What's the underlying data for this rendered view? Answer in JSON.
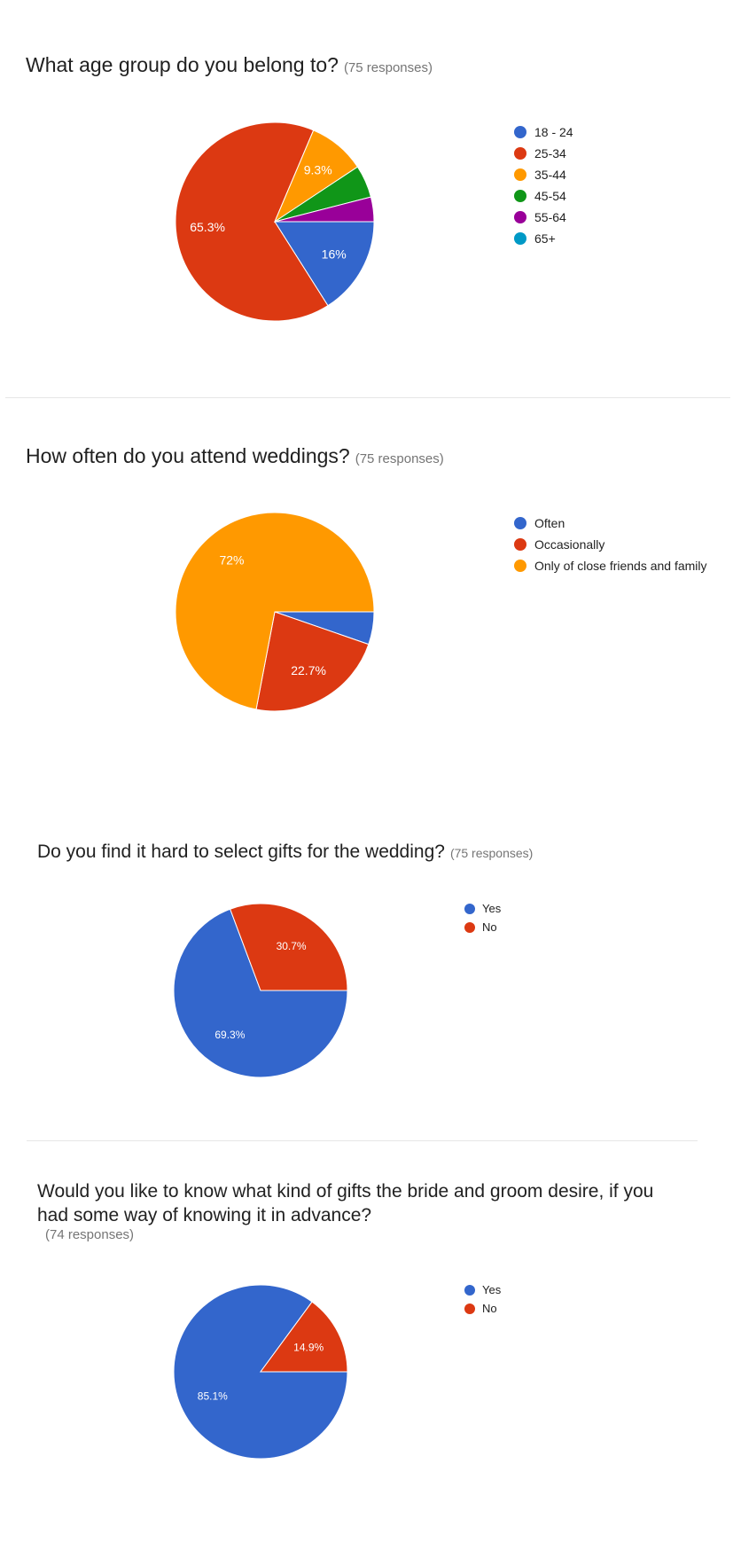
{
  "chart_data": [
    {
      "type": "pie",
      "title": "What age group do you belong to?",
      "responses": "(75 responses)",
      "categories": [
        "18 - 24",
        "25-34",
        "35-44",
        "45-54",
        "55-64",
        "65+"
      ],
      "values": [
        16,
        65.3,
        9.3,
        5.3,
        4.0,
        0
      ],
      "colors": [
        "#3366cc",
        "#dc3912",
        "#ff9900",
        "#109618",
        "#990099",
        "#0099c6"
      ],
      "data_labels": [
        "16%",
        "65.3%",
        "9.3%",
        "",
        "",
        ""
      ],
      "legend_position": "right"
    },
    {
      "type": "pie",
      "title": "How often do you attend weddings?",
      "responses": "(75 responses)",
      "categories": [
        "Often",
        "Occasionally",
        "Only of close friends and family"
      ],
      "values": [
        5.3,
        22.7,
        72
      ],
      "colors": [
        "#3366cc",
        "#dc3912",
        "#ff9900"
      ],
      "data_labels": [
        "",
        "22.7%",
        "72%"
      ],
      "legend_position": "right"
    },
    {
      "type": "pie",
      "title": "Do you find it hard to select gifts for the wedding?",
      "responses": "(75 responses)",
      "categories": [
        "Yes",
        "No"
      ],
      "values": [
        69.3,
        30.7
      ],
      "colors": [
        "#3366cc",
        "#dc3912"
      ],
      "data_labels": [
        "69.3%",
        "30.7%"
      ],
      "legend_position": "right"
    },
    {
      "type": "pie",
      "title": "Would you like to know what kind of gifts the bride and groom desire, if you had some way of knowing it in advance?",
      "title_line1": "Would you like to know what kind of gifts the bride and groom desire, if you",
      "title_line2": "had some way of knowing it in advance?",
      "responses": "(74 responses)",
      "categories": [
        "Yes",
        "No"
      ],
      "values": [
        85.1,
        14.9
      ],
      "colors": [
        "#3366cc",
        "#dc3912"
      ],
      "data_labels": [
        "85.1%",
        "14.9%"
      ],
      "legend_position": "right"
    }
  ]
}
